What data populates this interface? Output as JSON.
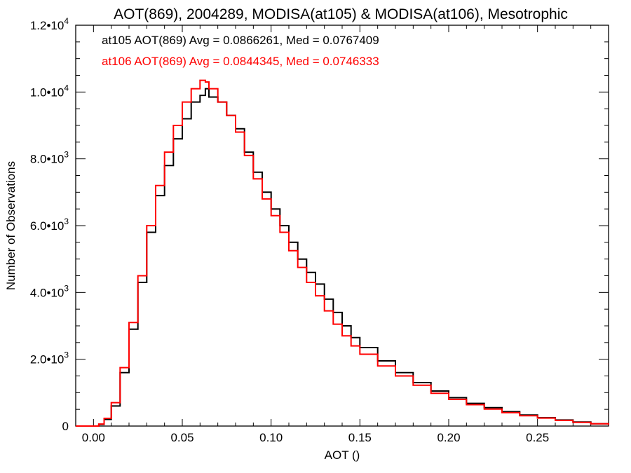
{
  "chart_data": {
    "type": "line",
    "style": "step-histogram",
    "title": "AOT(869), 2004289, MODISA(at105) & MODISA(at106), Mesotrophic",
    "xlabel": "AOT ()",
    "ylabel": "Number of Observations",
    "xlim": [
      -0.01,
      0.29
    ],
    "ylim": [
      0,
      12000
    ],
    "x_ticks": [
      {
        "value": 0.0,
        "label": "0.00"
      },
      {
        "value": 0.05,
        "label": "0.05"
      },
      {
        "value": 0.1,
        "label": "0.10"
      },
      {
        "value": 0.15,
        "label": "0.15"
      },
      {
        "value": 0.2,
        "label": "0.20"
      },
      {
        "value": 0.25,
        "label": "0.25"
      }
    ],
    "y_ticks": [
      {
        "value": 0,
        "mantissa": "0",
        "exp": ""
      },
      {
        "value": 2000,
        "mantissa": "2.0•10",
        "exp": "3"
      },
      {
        "value": 4000,
        "mantissa": "4.0•10",
        "exp": "3"
      },
      {
        "value": 6000,
        "mantissa": "6.0•10",
        "exp": "3"
      },
      {
        "value": 8000,
        "mantissa": "8.0•10",
        "exp": "3"
      },
      {
        "value": 10000,
        "mantissa": "1.0•10",
        "exp": "4"
      },
      {
        "value": 12000,
        "mantissa": "1.2•10",
        "exp": "4"
      }
    ],
    "grid": false,
    "legend_position": "top-left",
    "series": [
      {
        "legend": "at105 AOT(869) Avg = 0.0866261, Med = 0.0767409",
        "color": "#000000",
        "x": [
          -0.01,
          0.0,
          0.003,
          0.006,
          0.01,
          0.015,
          0.02,
          0.025,
          0.03,
          0.035,
          0.04,
          0.045,
          0.05,
          0.055,
          0.06,
          0.063,
          0.065,
          0.07,
          0.075,
          0.08,
          0.085,
          0.09,
          0.095,
          0.1,
          0.105,
          0.11,
          0.115,
          0.12,
          0.125,
          0.13,
          0.135,
          0.14,
          0.145,
          0.15,
          0.16,
          0.17,
          0.18,
          0.19,
          0.2,
          0.21,
          0.22,
          0.23,
          0.24,
          0.25,
          0.26,
          0.27,
          0.28,
          0.29
        ],
        "y": [
          0,
          0,
          50,
          200,
          600,
          1600,
          2900,
          4300,
          5800,
          6900,
          7800,
          8600,
          9200,
          9700,
          9900,
          10100,
          9850,
          9700,
          9300,
          8900,
          8200,
          7600,
          7000,
          6500,
          6000,
          5500,
          5000,
          4600,
          4250,
          3800,
          3400,
          3000,
          2650,
          2350,
          1950,
          1600,
          1300,
          1050,
          850,
          680,
          550,
          430,
          330,
          250,
          180,
          120,
          70,
          40
        ]
      },
      {
        "legend": "at106 AOT(869) Avg = 0.0844345, Med = 0.0746333",
        "color": "#ff0000",
        "x": [
          -0.01,
          0.0,
          0.003,
          0.006,
          0.01,
          0.015,
          0.02,
          0.025,
          0.03,
          0.035,
          0.04,
          0.045,
          0.05,
          0.055,
          0.06,
          0.063,
          0.065,
          0.07,
          0.075,
          0.08,
          0.085,
          0.09,
          0.095,
          0.1,
          0.105,
          0.11,
          0.115,
          0.12,
          0.125,
          0.13,
          0.135,
          0.14,
          0.145,
          0.15,
          0.16,
          0.17,
          0.18,
          0.19,
          0.2,
          0.21,
          0.22,
          0.23,
          0.24,
          0.25,
          0.26,
          0.27,
          0.28,
          0.29
        ],
        "y": [
          0,
          0,
          60,
          230,
          700,
          1750,
          3100,
          4500,
          6000,
          7200,
          8200,
          9000,
          9700,
          10100,
          10350,
          10300,
          10100,
          9700,
          9300,
          8800,
          8100,
          7400,
          6800,
          6300,
          5800,
          5250,
          4750,
          4300,
          3900,
          3450,
          3050,
          2700,
          2400,
          2150,
          1800,
          1500,
          1220,
          980,
          800,
          640,
          510,
          400,
          310,
          240,
          170,
          110,
          70,
          35
        ]
      }
    ]
  }
}
